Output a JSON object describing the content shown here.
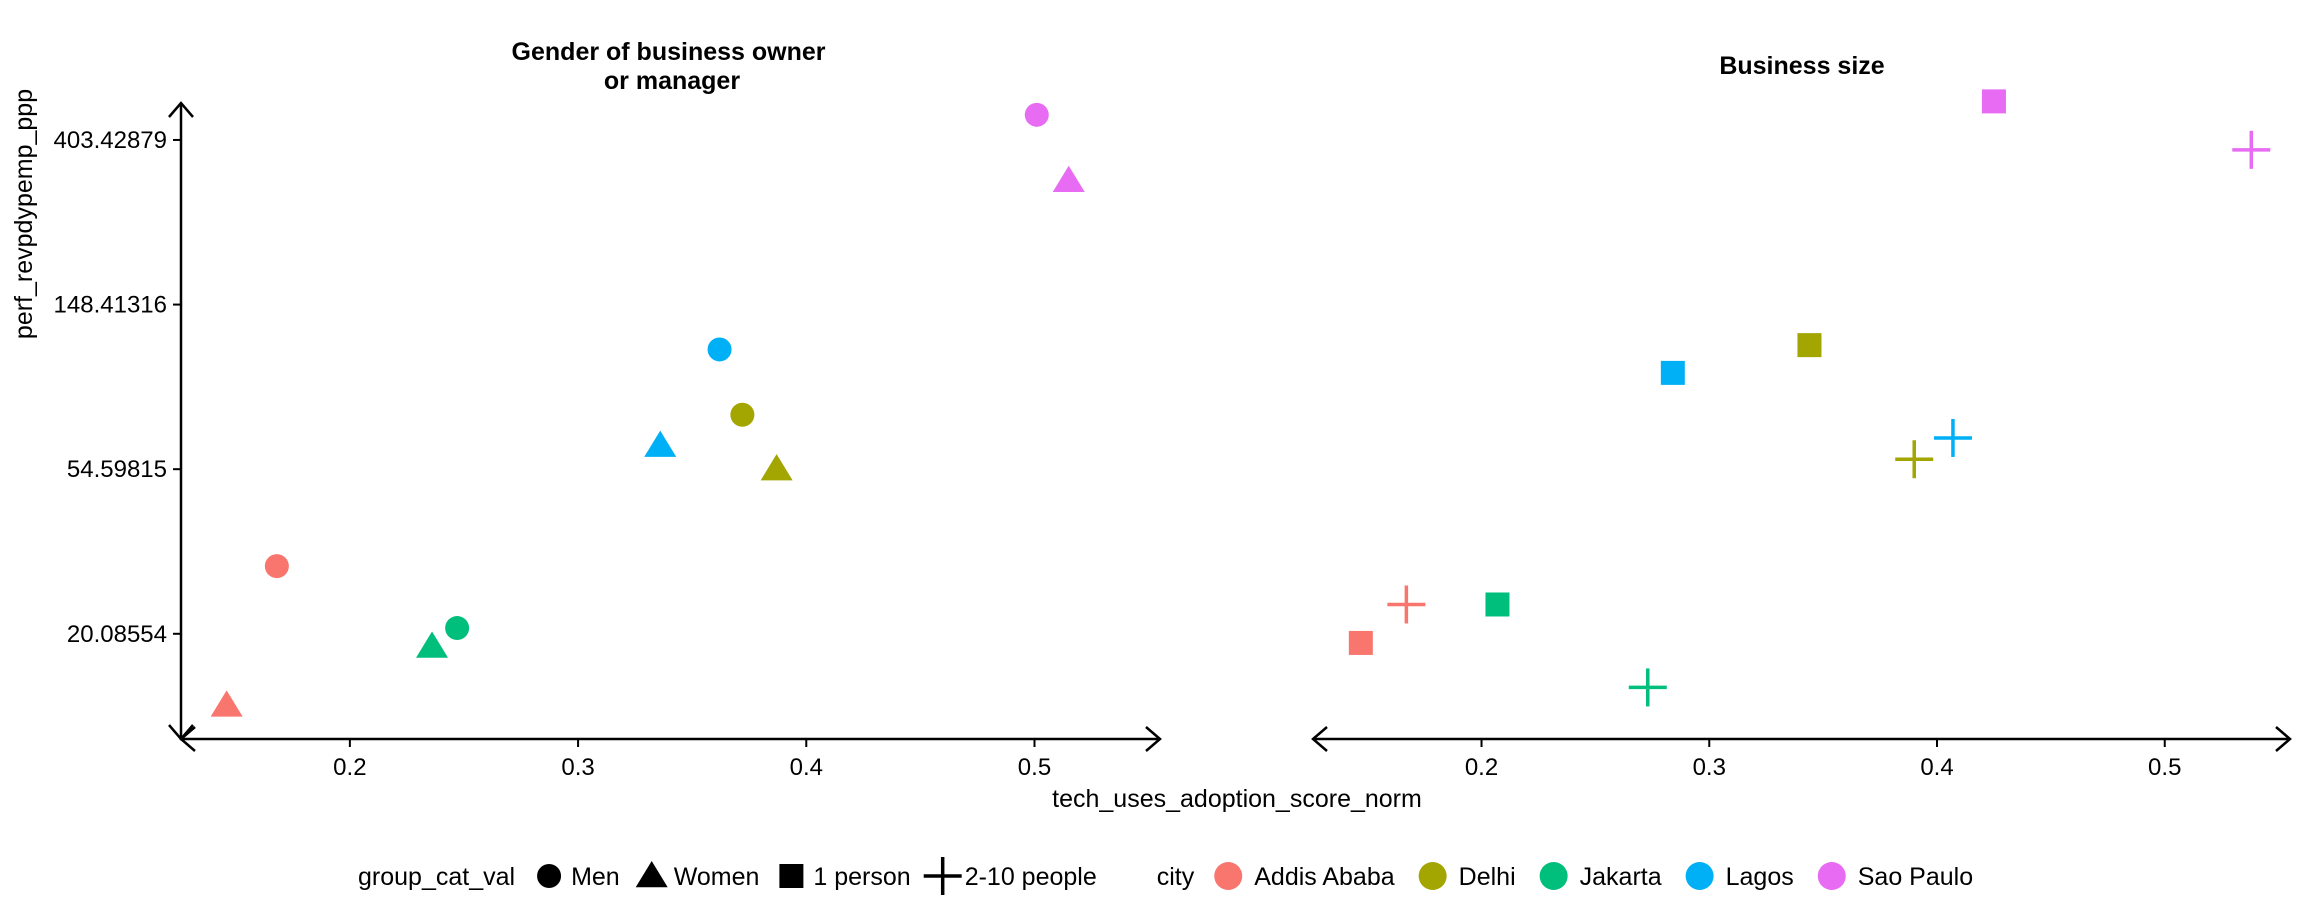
{
  "chart_data": {
    "type": "scatter",
    "y_axis": {
      "label": "perf_revpdypemp_ppp",
      "scale": "log",
      "ticks": [
        20.08554,
        54.59815,
        148.41316,
        403.42879
      ],
      "tick_labels": [
        "20.08554",
        "54.59815",
        "148.41316",
        "403.42879"
      ],
      "range": [
        10.6,
        505
      ]
    },
    "x_axis": {
      "label": "tech_uses_adoption_score_norm",
      "ticks": [
        0.2,
        0.3,
        0.4,
        0.5
      ],
      "tick_labels": [
        "0.2",
        "0.3",
        "0.4",
        "0.5"
      ],
      "range": [
        0.126,
        0.555
      ]
    },
    "grid": false,
    "legend_position": "bottom",
    "panels": [
      {
        "title": "Gender of business owner\nor manager",
        "title_lines": [
          "Gender of business owner",
          "or manager"
        ],
        "points": [
          {
            "x": 0.168,
            "y": 30.3,
            "city": "Addis Ababa",
            "group": "Men"
          },
          {
            "x": 0.146,
            "y": 13.0,
            "city": "Addis Ababa",
            "group": "Women"
          },
          {
            "x": 0.247,
            "y": 20.8,
            "city": "Jakarta",
            "group": "Men"
          },
          {
            "x": 0.236,
            "y": 18.6,
            "city": "Jakarta",
            "group": "Women"
          },
          {
            "x": 0.362,
            "y": 113.0,
            "city": "Lagos",
            "group": "Men"
          },
          {
            "x": 0.336,
            "y": 63.0,
            "city": "Lagos",
            "group": "Women"
          },
          {
            "x": 0.372,
            "y": 76.0,
            "city": "Delhi",
            "group": "Men"
          },
          {
            "x": 0.387,
            "y": 54.6,
            "city": "Delhi",
            "group": "Women"
          },
          {
            "x": 0.501,
            "y": 470.0,
            "city": "Sao Paulo",
            "group": "Men"
          },
          {
            "x": 0.515,
            "y": 315.0,
            "city": "Sao Paulo",
            "group": "Women"
          }
        ]
      },
      {
        "title": "Business size",
        "title_lines": [
          "Business size"
        ],
        "points": [
          {
            "x": 0.147,
            "y": 19.0,
            "city": "Addis Ababa",
            "group": "1 person"
          },
          {
            "x": 0.167,
            "y": 24.0,
            "city": "Addis Ababa",
            "group": "2-10 people"
          },
          {
            "x": 0.207,
            "y": 24.0,
            "city": "Jakarta",
            "group": "1 person"
          },
          {
            "x": 0.273,
            "y": 14.5,
            "city": "Jakarta",
            "group": "2-10 people"
          },
          {
            "x": 0.284,
            "y": 98.0,
            "city": "Lagos",
            "group": "1 person"
          },
          {
            "x": 0.407,
            "y": 66.0,
            "city": "Lagos",
            "group": "2-10 people"
          },
          {
            "x": 0.344,
            "y": 116.0,
            "city": "Delhi",
            "group": "1 person"
          },
          {
            "x": 0.39,
            "y": 58.0,
            "city": "Delhi",
            "group": "2-10 people"
          },
          {
            "x": 0.425,
            "y": 510.0,
            "city": "Sao Paulo",
            "group": "1 person"
          },
          {
            "x": 0.538,
            "y": 380.0,
            "city": "Sao Paulo",
            "group": "2-10 people"
          }
        ]
      }
    ],
    "legend_shape": {
      "title": "group_cat_val",
      "entries": [
        {
          "label": "Men",
          "shape": "circle"
        },
        {
          "label": "Women",
          "shape": "triangle"
        },
        {
          "label": "1 person",
          "shape": "square"
        },
        {
          "label": "2-10 people",
          "shape": "plus"
        }
      ]
    },
    "legend_color": {
      "title": "city",
      "entries": [
        {
          "label": "Addis Ababa",
          "color": "#F8766D"
        },
        {
          "label": "Delhi",
          "color": "#A3A500"
        },
        {
          "label": "Jakarta",
          "color": "#00BF7D"
        },
        {
          "label": "Lagos",
          "color": "#00B0F6"
        },
        {
          "label": "Sao Paulo",
          "color": "#E76BF3"
        }
      ]
    },
    "shape_map": {
      "Men": "circle",
      "Women": "triangle",
      "1 person": "square",
      "2-10 people": "plus"
    }
  }
}
